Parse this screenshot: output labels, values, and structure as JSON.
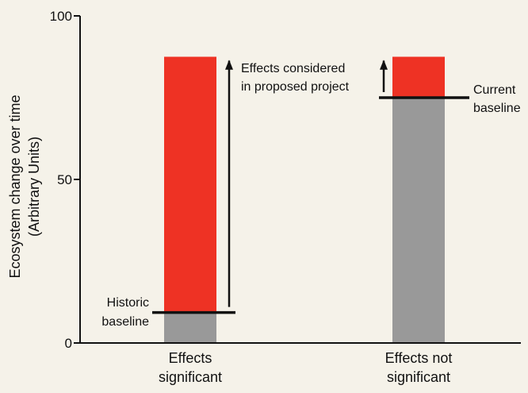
{
  "chart_data": {
    "type": "bar",
    "ylabel_line1": "Ecosystem change over time",
    "ylabel_line2": "(Arbitrary Units)",
    "ylim": [
      0,
      100
    ],
    "yticks": [
      "0",
      "50",
      "100"
    ],
    "categories": [
      {
        "line1": "Effects",
        "line2": "significant"
      },
      {
        "line1": "Effects not",
        "line2": "significant"
      }
    ],
    "bars": [
      {
        "baseline": 9.3,
        "total": 87.5
      },
      {
        "baseline": 75.0,
        "total": 87.5
      }
    ],
    "annotations": {
      "historic_line1": "Historic",
      "historic_line2": "baseline",
      "current_line1": "Current",
      "current_line2": "baseline",
      "effects_line1": "Effects considered",
      "effects_line2": "in proposed project"
    },
    "colors": {
      "baseline": "#999999",
      "effects": "#ee3224",
      "background": "#f5f2e9",
      "axis": "#111111"
    }
  }
}
